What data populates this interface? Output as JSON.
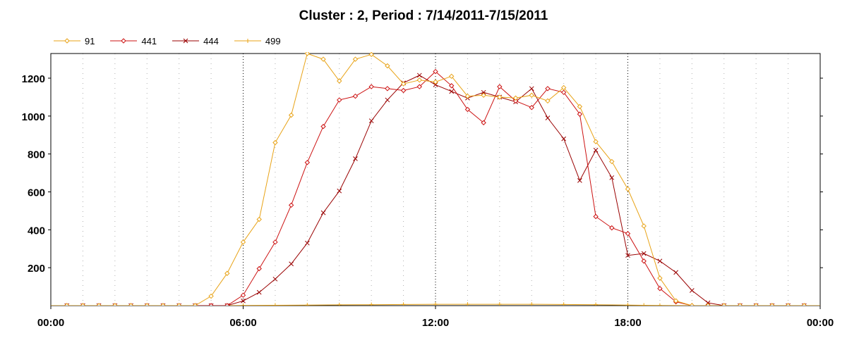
{
  "chart_data": {
    "type": "line",
    "title": "Cluster : 2, Period : 7/14/2011-7/15/2011",
    "xlabel": "",
    "ylabel": "",
    "x_unit": "hour",
    "xlim": [
      0,
      24
    ],
    "ylim": [
      0,
      1330
    ],
    "x_ticks": [
      0,
      6,
      12,
      18,
      24
    ],
    "x_tick_labels": [
      "00:00",
      "06:00",
      "12:00",
      "18:00",
      "00:00"
    ],
    "y_ticks": [
      200,
      400,
      600,
      800,
      1000,
      1200
    ],
    "y_tick_labels": [
      "200",
      "400",
      "600",
      "800",
      "1000",
      "1200"
    ],
    "grid": true,
    "legend_position": "top-left",
    "series": [
      {
        "name": "91",
        "color": "#e8a317",
        "marker": "diamond",
        "x": [
          0.5,
          1,
          1.5,
          2,
          2.5,
          3,
          3.5,
          4,
          4.5,
          5,
          5.5,
          6,
          6.5,
          7,
          7.5,
          8,
          8.5,
          9,
          9.5,
          10,
          10.5,
          11,
          11.5,
          12,
          12.5,
          13,
          13.5,
          14,
          14.5,
          15,
          15.5,
          16,
          16.5,
          17,
          17.5,
          18,
          18.5,
          19,
          19.5,
          20,
          20.5,
          21,
          21.5,
          22,
          22.5,
          23,
          23.5
        ],
        "y": [
          0,
          0,
          0,
          0,
          0,
          0,
          0,
          0,
          0,
          50,
          170,
          335,
          455,
          860,
          1005,
          1330,
          1300,
          1185,
          1300,
          1325,
          1265,
          1170,
          1190,
          1180,
          1210,
          1105,
          1110,
          1100,
          1095,
          1110,
          1080,
          1150,
          1050,
          865,
          760,
          615,
          420,
          145,
          25,
          0,
          0,
          0,
          0,
          0,
          0,
          0,
          0
        ]
      },
      {
        "name": "441",
        "color": "#cc1111",
        "marker": "diamond",
        "x": [
          0.5,
          1,
          1.5,
          2,
          2.5,
          3,
          3.5,
          4,
          4.5,
          5,
          5.5,
          6,
          6.5,
          7,
          7.5,
          8,
          8.5,
          9,
          9.5,
          10,
          10.5,
          11,
          11.5,
          12,
          12.5,
          13,
          13.5,
          14,
          14.5,
          15,
          15.5,
          16,
          16.5,
          17,
          17.5,
          18,
          18.5,
          19,
          19.5,
          20,
          20.5,
          21,
          21.5,
          22,
          22.5,
          23,
          23.5
        ],
        "y": [
          0,
          0,
          0,
          0,
          0,
          0,
          0,
          0,
          0,
          0,
          0,
          55,
          195,
          335,
          530,
          755,
          945,
          1085,
          1105,
          1155,
          1145,
          1135,
          1155,
          1235,
          1160,
          1035,
          965,
          1155,
          1080,
          1045,
          1145,
          1125,
          1010,
          470,
          410,
          380,
          235,
          90,
          20,
          0,
          0,
          0,
          0,
          0,
          0,
          0,
          0
        ]
      },
      {
        "name": "444",
        "color": "#990000",
        "marker": "x",
        "x": [
          0.5,
          1,
          1.5,
          2,
          2.5,
          3,
          3.5,
          4,
          4.5,
          5,
          5.5,
          6,
          6.5,
          7,
          7.5,
          8,
          8.5,
          9,
          9.5,
          10,
          10.5,
          11,
          11.5,
          12,
          12.5,
          13,
          13.5,
          14,
          14.5,
          15,
          15.5,
          16,
          16.5,
          17,
          17.5,
          18,
          18.5,
          19,
          19.5,
          20,
          20.5,
          21,
          21.5,
          22,
          22.5,
          23,
          23.5
        ],
        "y": [
          0,
          0,
          0,
          0,
          0,
          0,
          0,
          0,
          0,
          0,
          0,
          25,
          70,
          140,
          220,
          330,
          490,
          605,
          775,
          975,
          1085,
          1175,
          1215,
          1165,
          1130,
          1095,
          1125,
          1100,
          1075,
          1145,
          990,
          880,
          660,
          820,
          675,
          265,
          275,
          235,
          175,
          80,
          15,
          0,
          0,
          0,
          0,
          0,
          0
        ]
      },
      {
        "name": "499",
        "color": "#e8a317",
        "marker": "plus",
        "x": [
          0,
          4.5,
          5.5,
          6,
          7,
          8,
          9,
          10,
          11,
          12,
          13,
          14,
          15,
          16,
          17,
          18,
          18.5,
          19,
          20,
          24
        ],
        "y": [
          0,
          0,
          0,
          1,
          2,
          3,
          4,
          5,
          6,
          7,
          7,
          7,
          7,
          6,
          5,
          3,
          2,
          1,
          0,
          0
        ]
      }
    ]
  }
}
